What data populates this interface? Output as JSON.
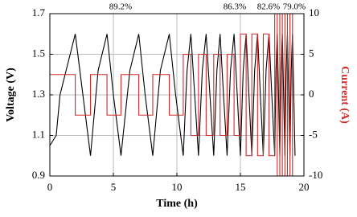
{
  "chart_data": {
    "type": "line",
    "xlabel": "Time (h)",
    "ylabel": "Voltage (V)",
    "y2label": "Current (A)",
    "annotations": [
      "89.2%",
      "86.3%",
      "82.6%",
      "79.0%"
    ],
    "xlim": [
      0,
      20
    ],
    "xticks": [
      0,
      5,
      10,
      15,
      20
    ],
    "ylim": [
      0.9,
      1.7
    ],
    "yticks": [
      0.9,
      1.1,
      1.3,
      1.5,
      1.7
    ],
    "y2lim": [
      -10,
      10
    ],
    "y2ticks": [
      -10,
      -5,
      0,
      5,
      10
    ],
    "grid": true,
    "series": [
      {
        "name": "Voltage",
        "color": "#000000",
        "x": [
          0,
          0.5,
          0.8,
          1.4,
          2,
          2.6,
          3.2,
          3.8,
          4.5,
          5.0,
          5.6,
          6.3,
          7,
          7.5,
          8.1,
          8.7,
          9.4,
          9.9,
          10.5,
          10.8,
          11.1,
          11.4,
          11.7,
          12.0,
          12.3,
          12.6,
          12.9,
          13.15,
          13.4,
          13.67,
          13.95,
          14.22,
          14.5,
          14.75,
          15,
          15.22,
          15.45,
          15.67,
          15.9,
          16.12,
          16.35,
          16.57,
          16.8,
          17.02,
          17.25,
          17.47,
          17.7,
          17.8,
          17.9,
          18.0,
          18.1,
          18.2,
          18.3,
          18.4,
          18.5,
          18.6,
          18.7,
          18.8,
          18.9,
          19.0,
          19.1,
          19.2,
          19.3
        ],
        "values": [
          1.05,
          1.1,
          1.3,
          1.45,
          1.6,
          1.3,
          1.0,
          1.42,
          1.6,
          1.3,
          1.0,
          1.42,
          1.6,
          1.3,
          1.0,
          1.42,
          1.6,
          1.3,
          1.0,
          1.42,
          1.6,
          1.3,
          1.0,
          1.42,
          1.6,
          1.3,
          1.0,
          1.42,
          1.6,
          1.3,
          1.0,
          1.42,
          1.6,
          1.3,
          1.0,
          1.42,
          1.6,
          1.3,
          1.0,
          1.42,
          1.6,
          1.3,
          1.0,
          1.42,
          1.6,
          1.3,
          1.0,
          1.42,
          1.6,
          1.3,
          1.0,
          1.42,
          1.6,
          1.3,
          1.0,
          1.42,
          1.6,
          1.3,
          1.0,
          1.42,
          1.6,
          1.3,
          1.0
        ]
      },
      {
        "name": "Current",
        "color": "#d42a2a",
        "axis": "y2",
        "x": [
          0,
          2,
          2,
          3.2,
          3.2,
          4.5,
          4.5,
          5.6,
          5.6,
          7,
          7,
          8.1,
          8.1,
          9.4,
          9.4,
          10.5,
          10.5,
          11.1,
          11.1,
          11.7,
          11.7,
          12.3,
          12.3,
          12.9,
          12.9,
          13.4,
          13.4,
          13.95,
          13.95,
          14.5,
          14.5,
          15,
          15,
          15.45,
          15.45,
          15.9,
          15.9,
          16.35,
          16.35,
          16.8,
          16.8,
          17.25,
          17.25,
          17.7,
          17.7,
          17.9,
          17.9,
          18.1,
          18.1,
          18.3,
          18.3,
          18.5,
          18.5,
          18.7,
          18.7,
          18.9,
          18.9,
          19.1,
          19.1,
          19.3
        ],
        "values": [
          2.5,
          2.5,
          -2.5,
          -2.5,
          2.5,
          2.5,
          -2.5,
          -2.5,
          2.5,
          2.5,
          -2.5,
          -2.5,
          2.5,
          2.5,
          -2.5,
          -2.5,
          5,
          5,
          -5,
          -5,
          5,
          5,
          -5,
          -5,
          5,
          5,
          -5,
          -5,
          5,
          5,
          -5,
          -5,
          7.5,
          7.5,
          -7.5,
          -7.5,
          7.5,
          7.5,
          -7.5,
          -7.5,
          7.5,
          7.5,
          -7.5,
          -7.5,
          10,
          10,
          -10,
          -10,
          10,
          10,
          -10,
          -10,
          10,
          10,
          -10,
          -10,
          10,
          10,
          -10,
          -10
        ]
      }
    ]
  }
}
